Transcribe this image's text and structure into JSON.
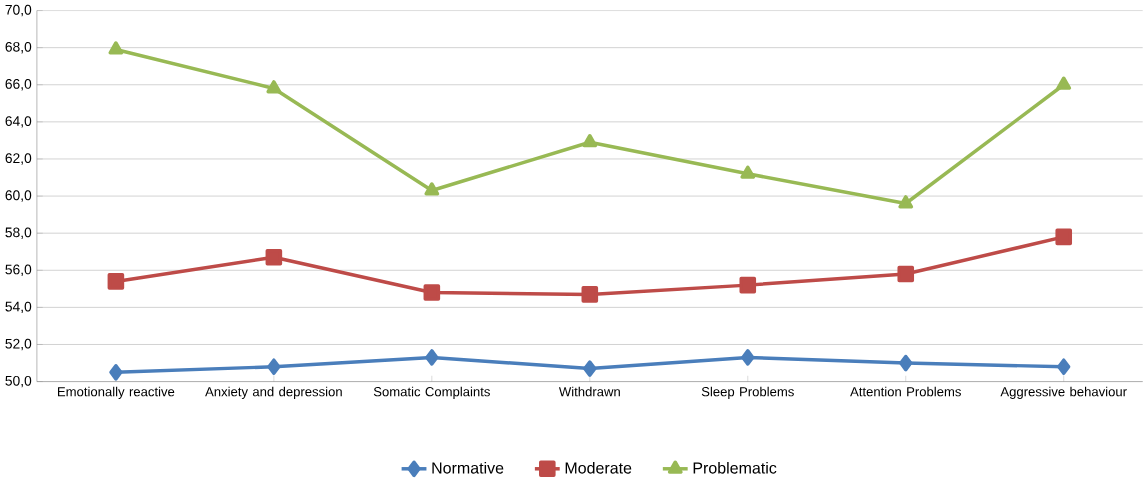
{
  "chart_data": {
    "type": "line",
    "categories": [
      "Emotionally reactive",
      "Anxiety and depression",
      "Somatic Complaints",
      "Withdrawn",
      "Sleep Problems",
      "Attention Problems",
      "Aggressive behaviour"
    ],
    "series": [
      {
        "name": "Normative",
        "color": "#4a7ebb",
        "marker": "diamond",
        "values": [
          50.5,
          50.8,
          51.3,
          50.7,
          51.3,
          51.0,
          50.8
        ]
      },
      {
        "name": "Moderate",
        "color": "#be4b48",
        "marker": "square",
        "values": [
          55.4,
          56.7,
          54.8,
          54.7,
          55.2,
          55.8,
          57.8
        ]
      },
      {
        "name": "Problematic",
        "color": "#98b954",
        "marker": "triangle",
        "values": [
          67.9,
          65.8,
          60.3,
          62.9,
          61.2,
          59.6,
          66.0
        ]
      }
    ],
    "ylim": [
      50,
      70
    ],
    "yticks": [
      {
        "value": 50,
        "label": "50,0"
      },
      {
        "value": 52,
        "label": "52,0"
      },
      {
        "value": 54,
        "label": "54,0"
      },
      {
        "value": 56,
        "label": "56,0"
      },
      {
        "value": 58,
        "label": "58,0"
      },
      {
        "value": 60,
        "label": "60,0"
      },
      {
        "value": 62,
        "label": "62,0"
      },
      {
        "value": 64,
        "label": "64,0"
      },
      {
        "value": 66,
        "label": "66,0"
      },
      {
        "value": 68,
        "label": "68,0"
      },
      {
        "value": 70,
        "label": "70,0"
      }
    ],
    "grid": "y",
    "legend": "bottom",
    "line_style": "solid"
  }
}
